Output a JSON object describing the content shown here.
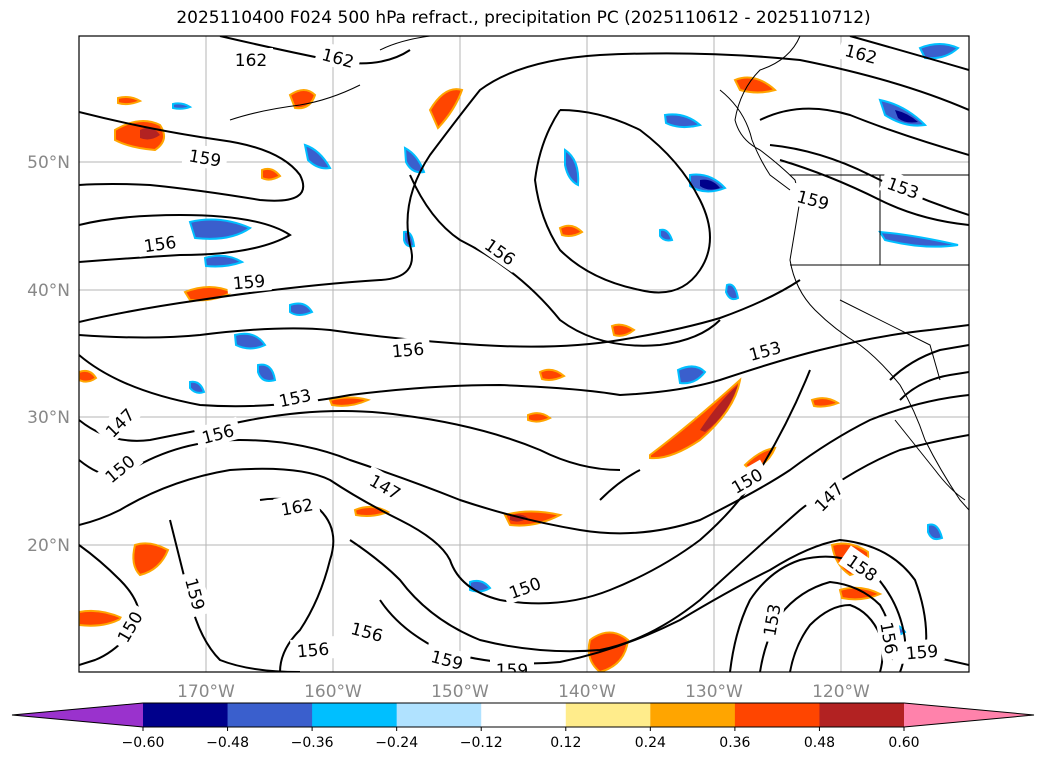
{
  "title": "2025110400 F024 500 hPa refract., precipitation PC (2025110612 - 2025110712)",
  "lat_labels": [
    "50°N",
    "40°N",
    "30°N",
    "20°N"
  ],
  "lon_labels": [
    "170°W",
    "160°W",
    "150°W",
    "140°W",
    "130°W",
    "120°W"
  ],
  "contour_labels": [
    "162",
    "162",
    "159",
    "156",
    "159",
    "156",
    "153",
    "147",
    "150",
    "147",
    "162",
    "156",
    "150",
    "159",
    "150",
    "156",
    "156",
    "159",
    "159",
    "156",
    "153",
    "150",
    "147",
    "153",
    "158",
    "162",
    "153",
    "159",
    "159",
    "156"
  ],
  "colorbar": {
    "ticks": [
      "−0.60",
      "−0.48",
      "−0.36",
      "−0.24",
      "−0.12",
      "0.12",
      "0.24",
      "0.36",
      "0.48",
      "0.60"
    ],
    "colors": [
      "#9a32cd",
      "#00008b",
      "#3a5fcd",
      "#00bfff",
      "#b0e2ff",
      "#ffffff",
      "#ffec8b",
      "#ffa500",
      "#ff4500",
      "#b22222",
      "#ff82ab"
    ]
  },
  "colors": {
    "positive_shades": [
      "#ffec8b",
      "#ffa500",
      "#ff4500",
      "#b22222"
    ],
    "negative_shades": [
      "#b0e2ff",
      "#00bfff",
      "#3a5fcd",
      "#00008b"
    ]
  }
}
